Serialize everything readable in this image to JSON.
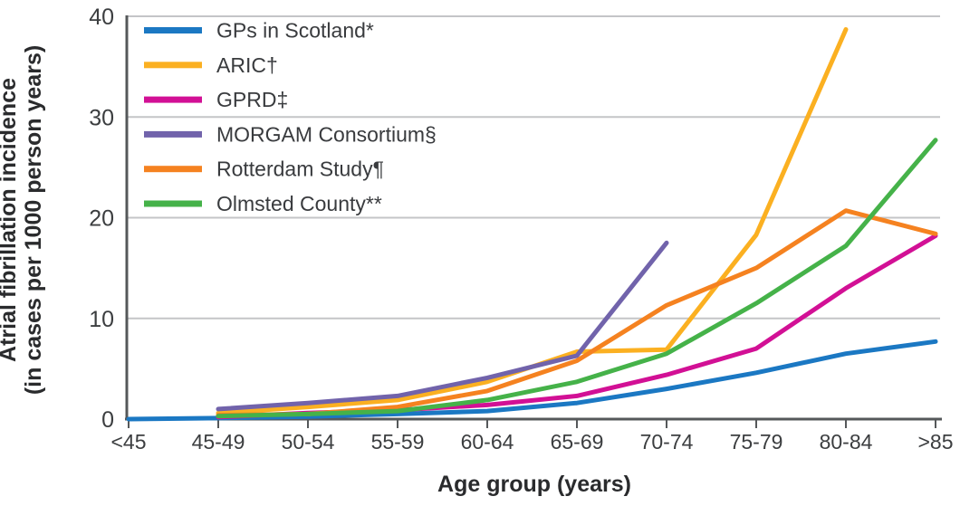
{
  "figure": {
    "background_color": "#ffffff",
    "axis_color": "#55585a",
    "gridline_color": "#c4c5c7",
    "tick_label_color": "#3c3e40",
    "title_color": "#2a2b2d"
  },
  "chart_data": {
    "type": "line",
    "title": "",
    "xlabel": "Age group (years)",
    "ylabel_line1": "Atrial fibrillation incidence",
    "ylabel_line2": "(in cases per 1000 person years)",
    "categories": [
      "<45",
      "45-49",
      "50-54",
      "55-59",
      "60-64",
      "65-69",
      "70-74",
      "75-79",
      "80-84",
      ">85"
    ],
    "y_ticks": [
      0,
      10,
      20,
      30,
      40
    ],
    "ylim": [
      0,
      40
    ],
    "grid": "horizontal-gridlines-on",
    "legend_position": "top-left",
    "series": [
      {
        "name": "GPs in Scotland*",
        "color": "#1b78c3",
        "values": [
          0,
          0.1,
          0.25,
          0.5,
          0.8,
          1.6,
          3.0,
          4.6,
          6.5,
          7.7
        ]
      },
      {
        "name": "ARIC†",
        "color": "#fbb021",
        "values": [
          null,
          0.6,
          1.2,
          1.9,
          3.7,
          6.7,
          6.9,
          18.3,
          38.7,
          null
        ]
      },
      {
        "name": "GPRD‡",
        "color": "#d21095",
        "values": [
          null,
          0.2,
          0.6,
          0.9,
          1.4,
          2.3,
          4.4,
          7.0,
          13.0,
          18.2
        ]
      },
      {
        "name": "MORGAM Consortium§",
        "color": "#7163ab",
        "values": [
          null,
          1.0,
          1.6,
          2.3,
          4.1,
          6.3,
          17.5,
          null,
          null,
          null
        ]
      },
      {
        "name": "Rotterdam Study¶",
        "color": "#f58220",
        "values": [
          null,
          0.4,
          0.5,
          1.2,
          2.8,
          5.8,
          11.3,
          15.0,
          20.7,
          18.4
        ]
      },
      {
        "name": "Olmsted County**",
        "color": "#45b249",
        "values": [
          null,
          0.3,
          0.5,
          0.8,
          1.9,
          3.7,
          6.5,
          11.5,
          17.2,
          27.7
        ]
      }
    ]
  }
}
